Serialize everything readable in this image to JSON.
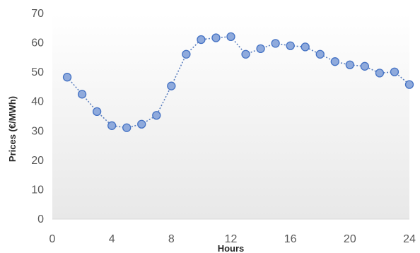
{
  "chart_data": {
    "type": "line",
    "title": "",
    "xlabel": "Hours",
    "ylabel": "Prices (€/MWh)",
    "xlim": [
      0,
      24
    ],
    "ylim": [
      0,
      70
    ],
    "x_ticks": [
      0,
      4,
      8,
      12,
      16,
      20,
      24
    ],
    "y_ticks": [
      0,
      10,
      20,
      30,
      40,
      50,
      60,
      70
    ],
    "grid": false,
    "legend": "none",
    "series": [
      {
        "color": "#8faadc",
        "line_style": "dotted",
        "marker": "circle",
        "points": [
          {
            "x": 1,
            "y": 48.3
          },
          {
            "x": 2,
            "y": 42.5
          },
          {
            "x": 3,
            "y": 36.6
          },
          {
            "x": 4,
            "y": 31.8
          },
          {
            "x": 5,
            "y": 31.1
          },
          {
            "x": 6,
            "y": 32.3
          },
          {
            "x": 7,
            "y": 35.3
          },
          {
            "x": 8,
            "y": 45.3
          },
          {
            "x": 9,
            "y": 56.1
          },
          {
            "x": 10,
            "y": 61.1
          },
          {
            "x": 11,
            "y": 61.7
          },
          {
            "x": 12,
            "y": 62.1
          },
          {
            "x": 13,
            "y": 56.1
          },
          {
            "x": 14,
            "y": 58.0
          },
          {
            "x": 15,
            "y": 59.8
          },
          {
            "x": 16,
            "y": 59.0
          },
          {
            "x": 17,
            "y": 58.6
          },
          {
            "x": 18,
            "y": 56.1
          },
          {
            "x": 19,
            "y": 53.6
          },
          {
            "x": 20,
            "y": 52.5
          },
          {
            "x": 21,
            "y": 52.0
          },
          {
            "x": 22,
            "y": 49.7
          },
          {
            "x": 23,
            "y": 50.1
          },
          {
            "x": 24,
            "y": 45.8
          }
        ]
      }
    ],
    "colors": {
      "background_top": "#ffffff",
      "background_bottom": "#e8e8e8",
      "marker_fill": "#8faadc",
      "marker_stroke": "#4472c4",
      "line": "#5b7fbf",
      "tick_text": "#595959",
      "title_text": "#262626"
    }
  }
}
